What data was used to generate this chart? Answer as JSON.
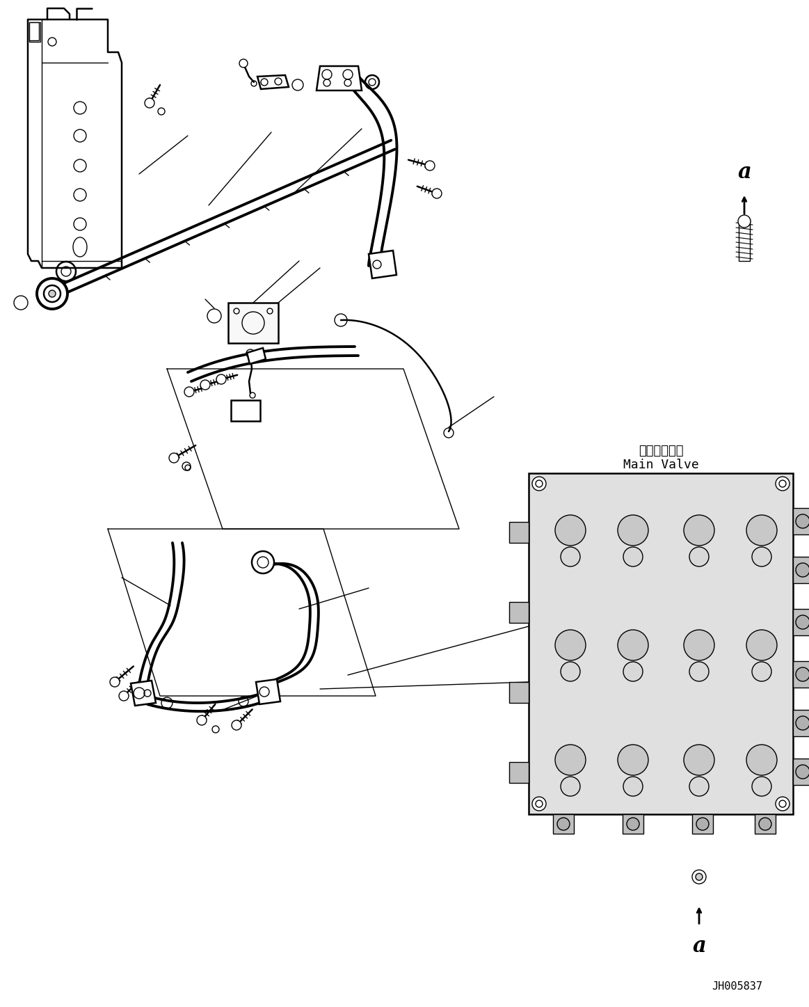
{
  "background_color": "#ffffff",
  "line_color": "#000000",
  "label_a_top": "a",
  "label_a_bottom": "a",
  "label_main_valve_jp": "メインバルブ",
  "label_main_valve_en": "Main Valve",
  "part_number": "JH005837",
  "fig_width": 11.63,
  "fig_height": 14.47,
  "dpi": 100
}
